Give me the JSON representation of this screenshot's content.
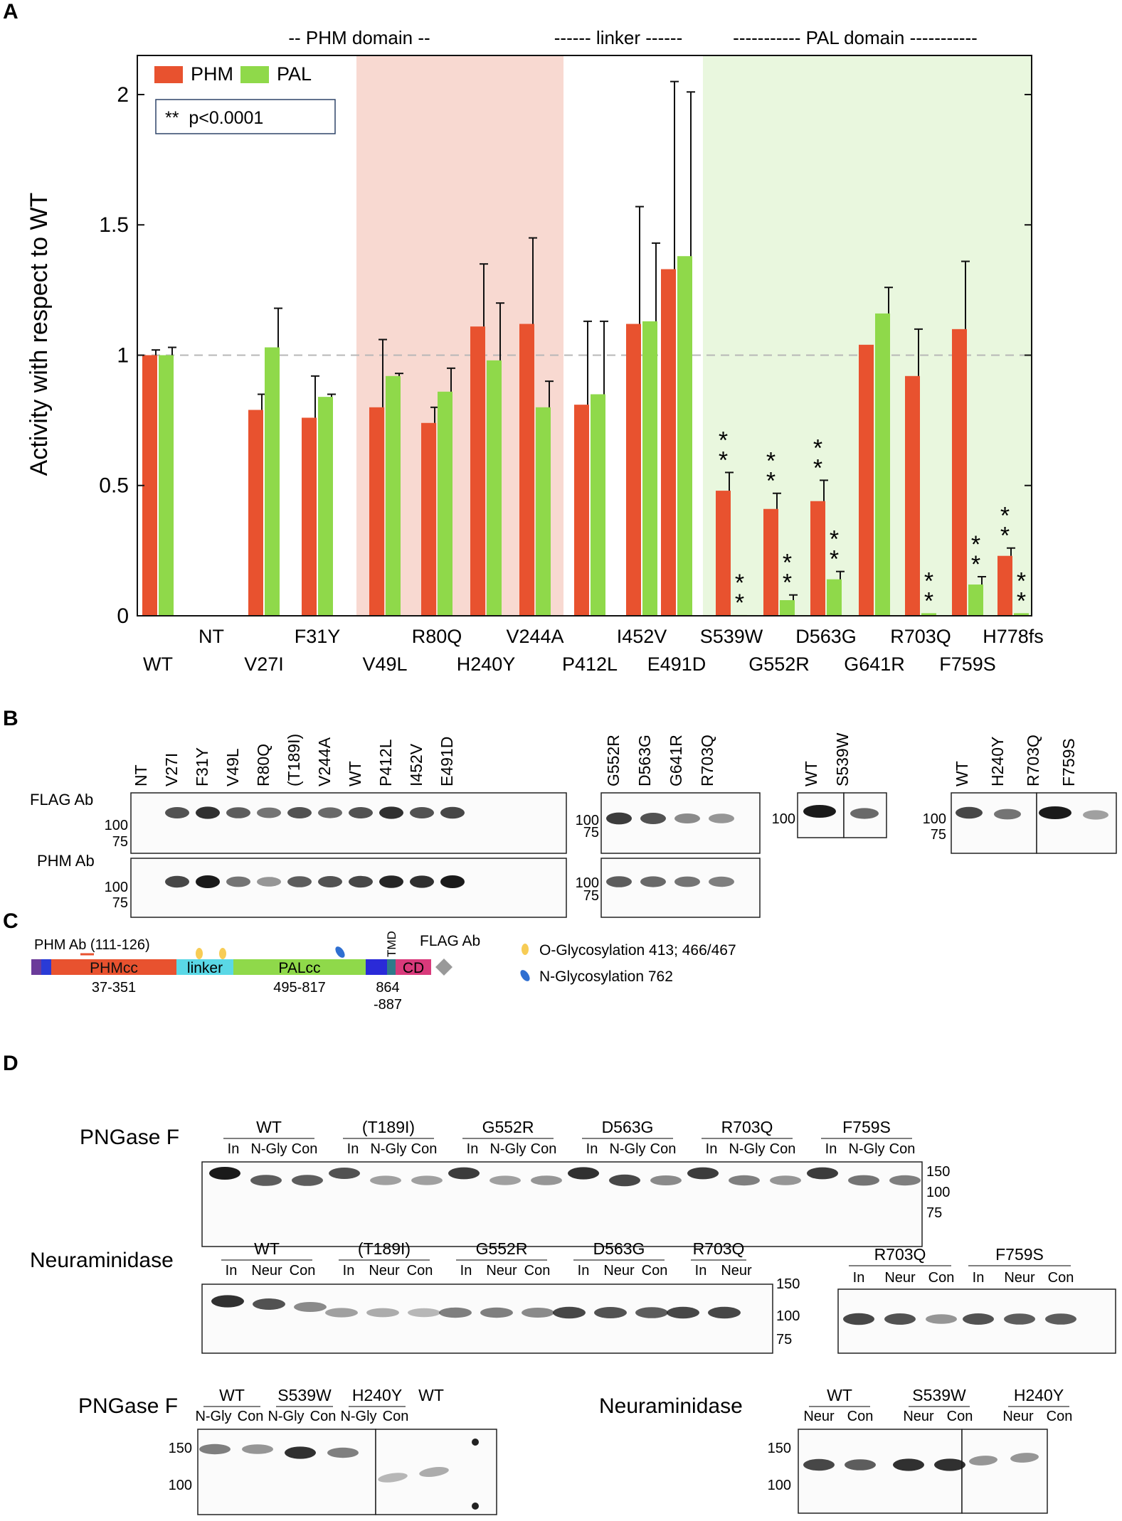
{
  "panel_labels": {
    "a": "A",
    "b": "B",
    "c": "C",
    "d": "D"
  },
  "panel_a": {
    "domain_labels": {
      "phm": "-- PHM domain --",
      "linker": "------ linker ------",
      "pal": "----------- PAL domain -----------"
    },
    "significance_note": "**  p<0.0001",
    "star_symbol": "*",
    "colors": {
      "phm": "#e8522f",
      "pal": "#8fd94a",
      "phm_shade": "#f8d9d1",
      "pal_shade": "#e9f7de",
      "ref_line": "#b7b7b7"
    }
  },
  "chart_data": {
    "type": "bar",
    "title": "",
    "xlabel": "",
    "ylabel": "Activity with respect to WT",
    "ylim": [
      0,
      2.15
    ],
    "yticks": [
      "0",
      "0.5",
      "1",
      "1.5",
      "2"
    ],
    "reference_line": 1,
    "grid": false,
    "legend_position": "top-left",
    "categories": [
      "WT",
      "NT",
      "V27I",
      "F31Y",
      "V49L",
      "R80Q",
      "H240Y",
      "V244A",
      "P412L",
      "I452V",
      "E491D",
      "S539W",
      "G552R",
      "D563G",
      "G641R",
      "R703Q",
      "F759S",
      "H778fs"
    ],
    "series": [
      {
        "name": "PHM",
        "values": [
          1.0,
          0,
          0.79,
          0.76,
          0.8,
          0.74,
          1.11,
          1.12,
          0.81,
          1.12,
          1.33,
          0.48,
          0.41,
          0.44,
          1.04,
          0.92,
          1.1,
          0.23
        ],
        "errors": [
          0.02,
          0,
          0.06,
          0.16,
          0.26,
          0.06,
          0.24,
          0.33,
          0.32,
          0.45,
          0.72,
          0.07,
          0.06,
          0.08,
          0,
          0.18,
          0.26,
          0.03
        ]
      },
      {
        "name": "PAL",
        "values": [
          1.0,
          0,
          1.03,
          0.84,
          0.92,
          0.86,
          0.98,
          0.8,
          0.85,
          1.13,
          1.38,
          0.003,
          0.06,
          0.14,
          1.16,
          0.01,
          0.12,
          0.01
        ],
        "errors": [
          0.03,
          0,
          0.15,
          0.01,
          0.01,
          0.09,
          0.22,
          0.1,
          0.28,
          0.3,
          0.63,
          0,
          0.02,
          0.03,
          0.1,
          0,
          0.03,
          0
        ]
      }
    ],
    "significance": {
      "PHM": [
        "S539W",
        "G552R",
        "D563G",
        "H778fs"
      ],
      "PAL": [
        "S539W",
        "G552R",
        "D563G",
        "R703Q",
        "F759S",
        "H778fs"
      ]
    },
    "shaded_regions": [
      {
        "label": "PHM domain",
        "from": "V49L",
        "to": "V244A"
      },
      {
        "label": "PAL domain",
        "from": "S539W",
        "to": "H778fs"
      }
    ]
  },
  "panel_b": {
    "row_labels": {
      "flag": "FLAG Ab",
      "phm": "PHM Ab"
    },
    "mw": {
      "m100": "100",
      "m75": "75"
    },
    "group1": [
      "NT",
      "V27I",
      "F31Y",
      "V49L",
      "R80Q",
      "(T189I)",
      "V244A",
      "WT",
      "P412L",
      "I452V",
      "E491D"
    ],
    "group2": [
      "G552R",
      "D563G",
      "G641R",
      "R703Q"
    ],
    "group3": [
      "WT",
      "S539W"
    ],
    "group4": [
      "WT",
      "H240Y",
      "R703Q",
      "F759S"
    ]
  },
  "panel_c": {
    "ab_label": "PHM Ab (111-126)",
    "flag_label": "FLAG Ab",
    "tmd_label": "TMD",
    "segments": {
      "phm": "PHMcc",
      "linker": "linker",
      "pal": "PALcc",
      "cd": "CD"
    },
    "ranges": {
      "phm": "37-351",
      "pal": "495-817",
      "tmd_a": "864",
      "tmd_b": "-887"
    },
    "legend": {
      "o": "O-Glycosylation 413; 466/467",
      "n": "N-Glycosylation 762"
    }
  },
  "panel_d": {
    "pngase_title": "PNGase F",
    "neur_title": "Neuraminidase",
    "row1_groups": [
      {
        "name": "WT",
        "lanes": [
          "In",
          "N-Gly",
          "Con"
        ]
      },
      {
        "name": "(T189I)",
        "lanes": [
          "In",
          "N-Gly",
          "Con"
        ]
      },
      {
        "name": "G552R",
        "lanes": [
          "In",
          "N-Gly",
          "Con"
        ]
      },
      {
        "name": "D563G",
        "lanes": [
          "In",
          "N-Gly",
          "Con"
        ]
      },
      {
        "name": "R703Q",
        "lanes": [
          "In",
          "N-Gly",
          "Con"
        ]
      },
      {
        "name": "F759S",
        "lanes": [
          "In",
          "N-Gly",
          "Con"
        ]
      }
    ],
    "row2_groups": [
      {
        "name": "WT",
        "lanes": [
          "In",
          "Neur",
          "Con"
        ]
      },
      {
        "name": "(T189I)",
        "lanes": [
          "In",
          "Neur",
          "Con"
        ]
      },
      {
        "name": "G552R",
        "lanes": [
          "In",
          "Neur",
          "Con"
        ]
      },
      {
        "name": "D563G",
        "lanes": [
          "In",
          "Neur",
          "Con"
        ]
      },
      {
        "name": "R703Q",
        "lanes": [
          "In",
          "Neur"
        ]
      }
    ],
    "row2b_groups": [
      {
        "name": "R703Q",
        "lanes": [
          "In",
          "Neur",
          "Con"
        ]
      },
      {
        "name": "F759S",
        "lanes": [
          "In",
          "Neur",
          "Con"
        ]
      }
    ],
    "row3_left_groups": [
      {
        "name": "WT",
        "lanes": [
          "N-Gly",
          "Con"
        ]
      },
      {
        "name": "S539W",
        "lanes": [
          "N-Gly",
          "Con"
        ]
      },
      {
        "name": "H240Y",
        "lanes": [
          "N-Gly",
          "Con"
        ]
      },
      {
        "name": "WT",
        "lanes": []
      }
    ],
    "row3_right_groups": [
      {
        "name": "WT",
        "lanes": [
          "Neur",
          "Con"
        ]
      },
      {
        "name": "S539W",
        "lanes": [
          "Neur",
          "Con"
        ]
      },
      {
        "name": "H240Y",
        "lanes": [
          "Neur",
          "Con"
        ]
      }
    ],
    "mw": {
      "m150": "150",
      "m100": "100",
      "m75": "75"
    }
  }
}
